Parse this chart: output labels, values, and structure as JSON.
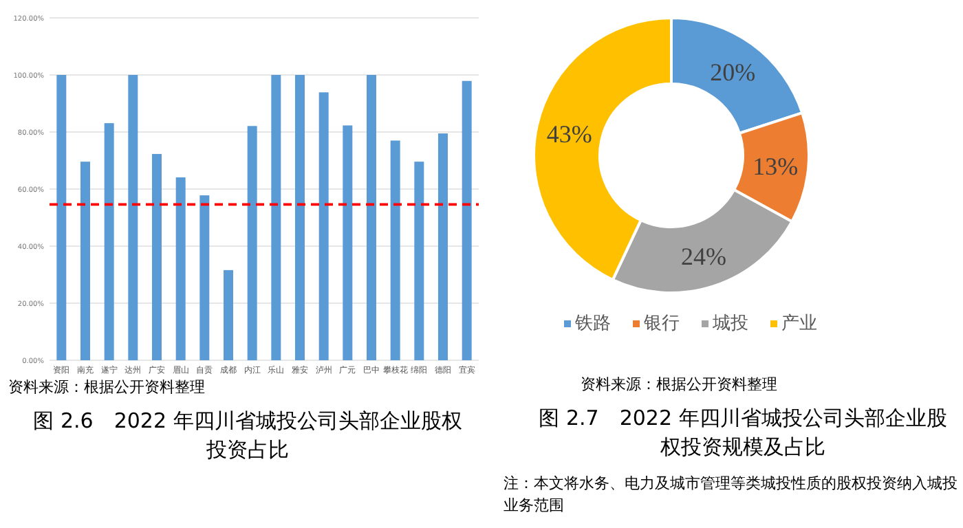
{
  "chart_data": [
    {
      "type": "bar",
      "title": "图 2.6　2022 年四川省城投公司头部企业股权投资占比",
      "categories": [
        "资阳",
        "南充",
        "遂宁",
        "达州",
        "广安",
        "眉山",
        "自贡",
        "成都",
        "内江",
        "乐山",
        "雅安",
        "泸州",
        "广元",
        "巴中",
        "攀枝花",
        "绵阳",
        "德阳",
        "宜宾"
      ],
      "values": [
        100,
        69.6,
        83.1,
        100,
        72.3,
        64.1,
        57.8,
        31.6,
        82.1,
        100,
        100,
        93.9,
        82.3,
        100,
        77.0,
        69.6,
        79.5,
        97.9
      ],
      "color": "#5b9bd5",
      "ylim": [
        0,
        120
      ],
      "yticks": [
        {
          "value": 0,
          "label": "0.00%"
        },
        {
          "value": 20,
          "label": "20.00%"
        },
        {
          "value": 40,
          "label": "40.00%"
        },
        {
          "value": 60,
          "label": "60.00%"
        },
        {
          "value": 80,
          "label": "80.00%"
        },
        {
          "value": 100,
          "label": "100.00%"
        },
        {
          "value": 120,
          "label": "120.00%"
        }
      ],
      "grid": "y",
      "ref_lines": [
        {
          "axis": "y",
          "value": 54.6,
          "color": "#ff0000",
          "line_style": "dashed"
        }
      ],
      "annotations": [
        "资料来源：根据公开资料整理"
      ]
    },
    {
      "type": "donut",
      "title": "图 2.7　2022 年四川省城投公司头部企业股权投资规模及占比",
      "categories": [
        "铁路",
        "银行",
        "城投",
        "产业"
      ],
      "values": [
        20,
        13,
        24,
        43
      ],
      "colors": [
        "#5b9bd5",
        "#ed7d31",
        "#a5a5a5",
        "#ffc000"
      ],
      "value_labels": [
        "20%",
        "13%",
        "24%",
        "43%"
      ],
      "legend": "bottom",
      "annotations": [
        "资料来源：根据公开资料整理",
        "注：本文将水务、电力及城市管理等类城投性质的股权投资纳入城投业务范围"
      ]
    }
  ]
}
